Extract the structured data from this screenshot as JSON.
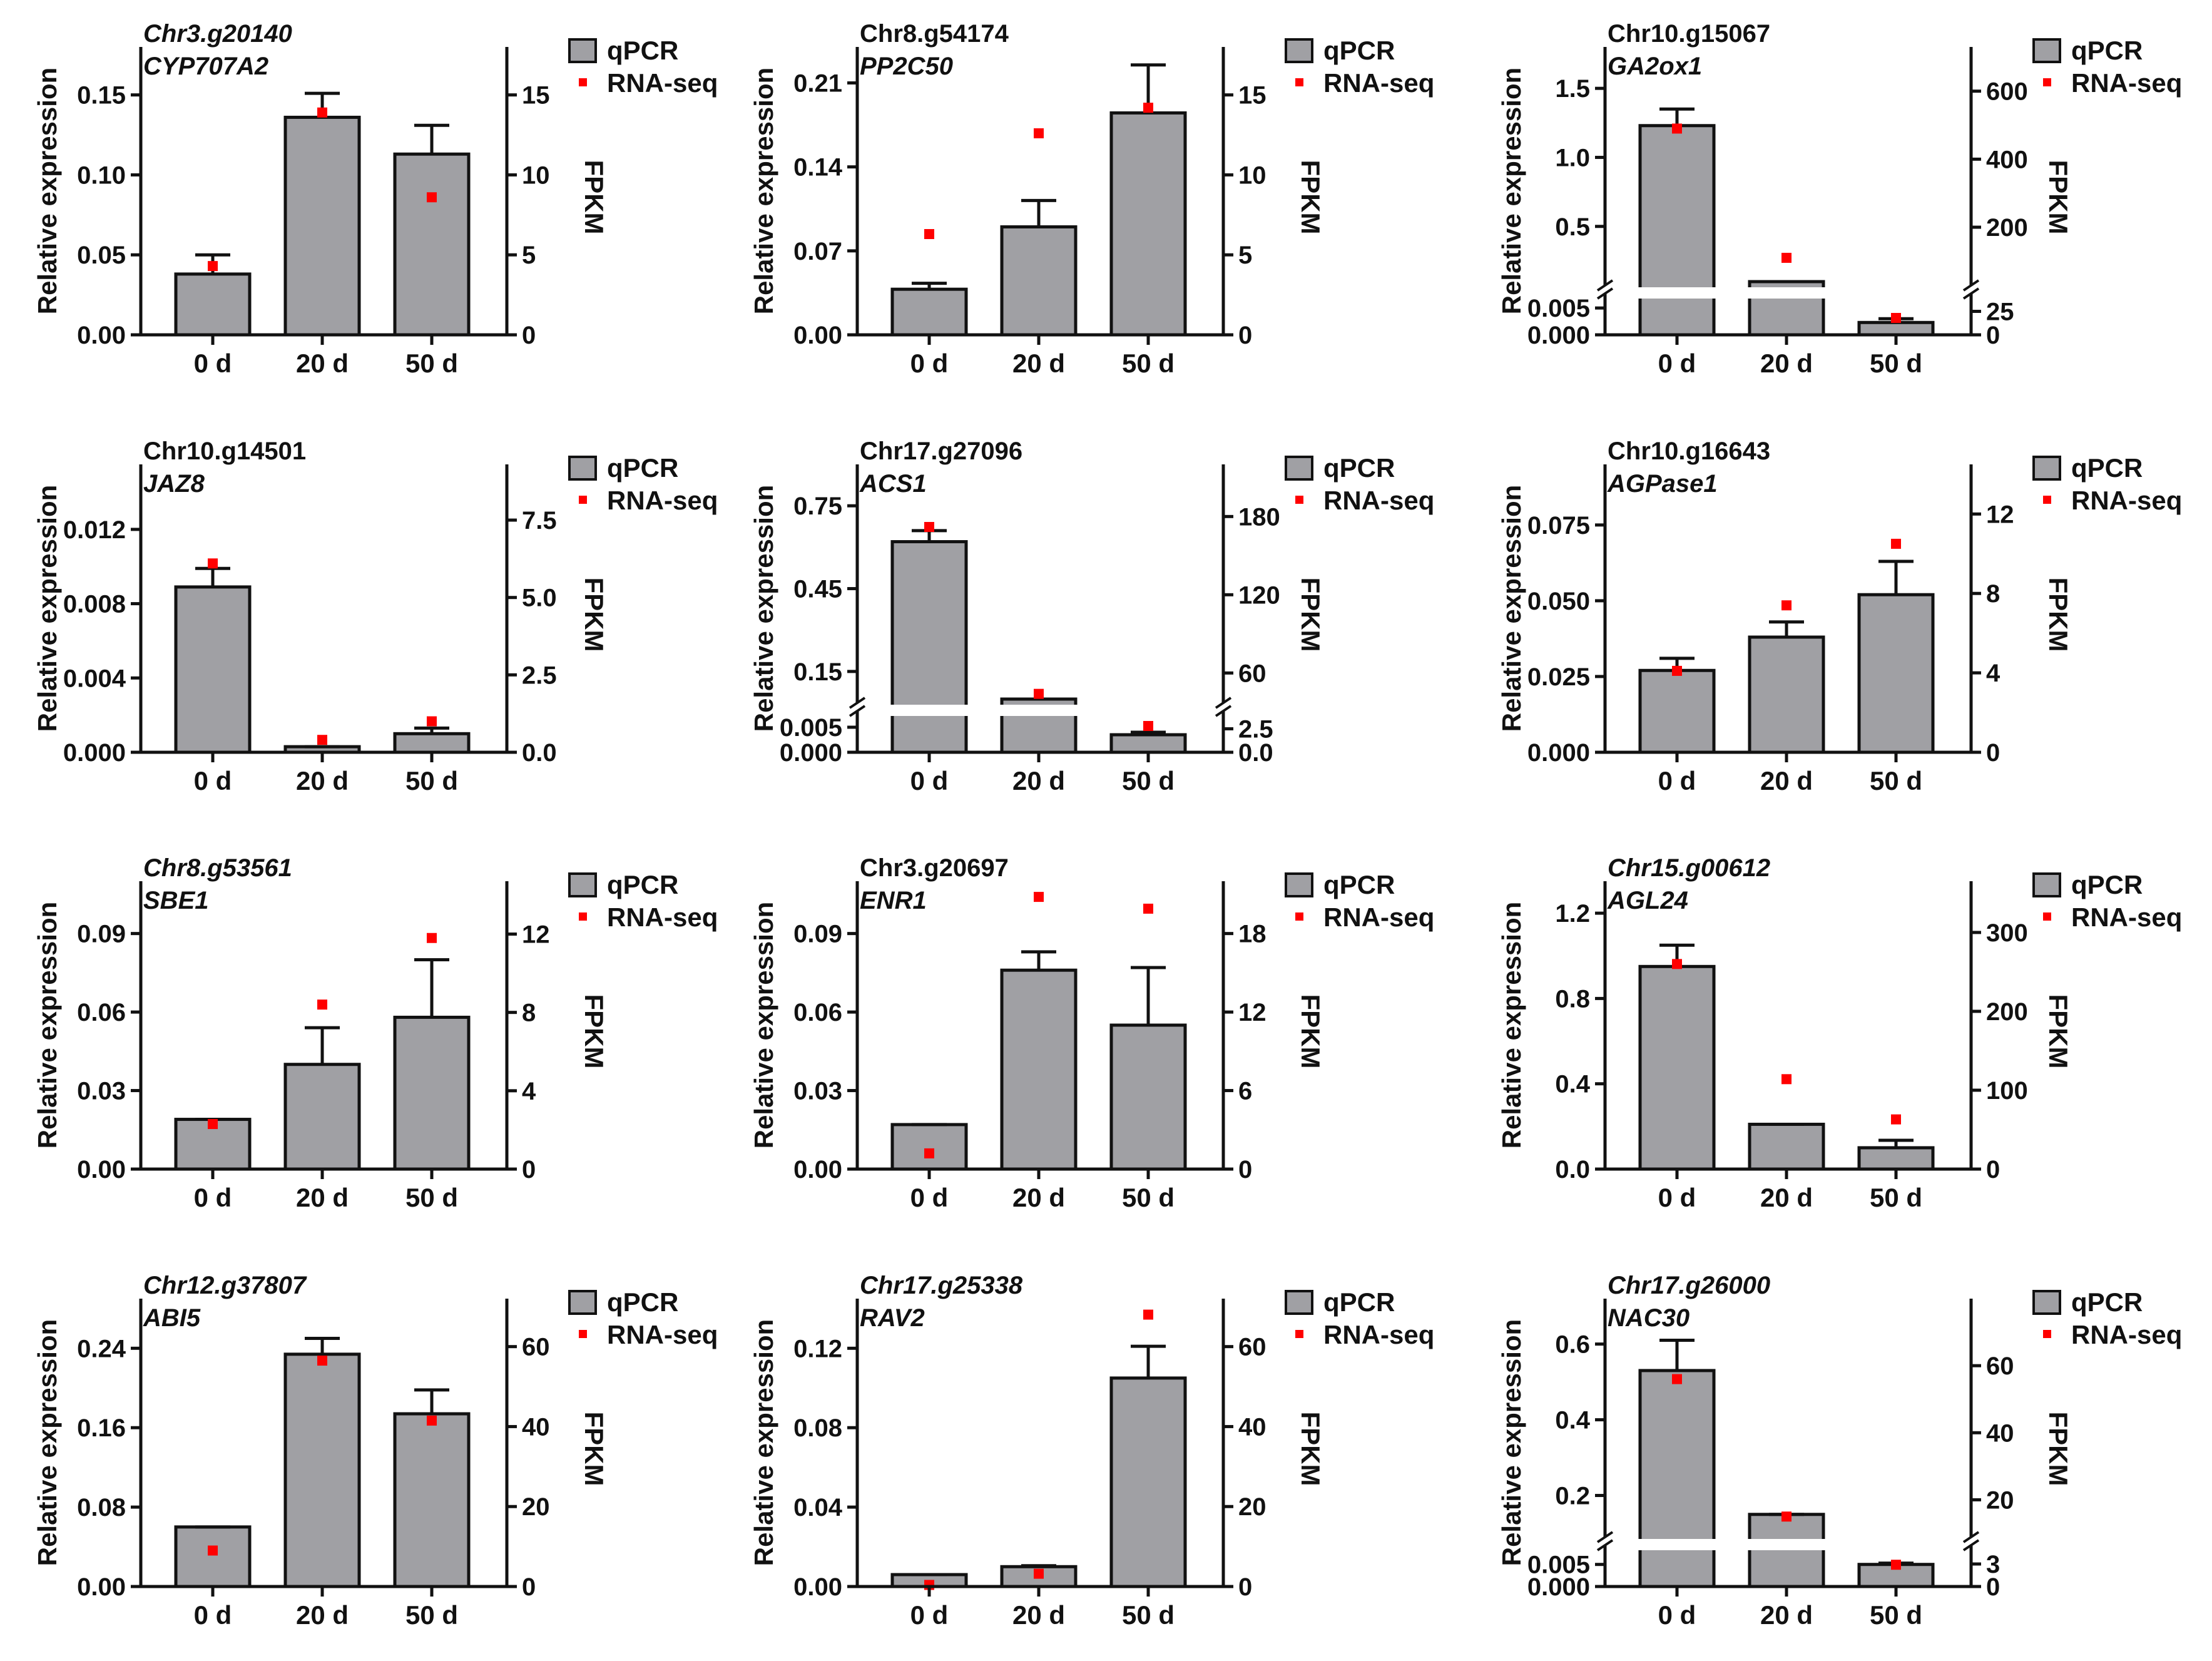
{
  "colors": {
    "bar": "#a0a0a4",
    "bar_stroke": "#111111",
    "point": "#ff0000",
    "axis": "#111111"
  },
  "legend": {
    "bar_label": "qPCR",
    "point_label": "RNA-seq"
  },
  "common": {
    "ylabel": "Relative expression",
    "y2label": "FPKM",
    "xlabel": "",
    "categories": [
      "0 d",
      "20 d",
      "50 d"
    ]
  },
  "chart_data": [
    {
      "type": "bar",
      "id_label": "Chr3.g20140",
      "gene": "CYP707A2",
      "id_italic": true,
      "categories": [
        "0 d",
        "20 d",
        "50 d"
      ],
      "series": [
        {
          "name": "qPCR",
          "values": [
            0.038,
            0.136,
            0.113
          ],
          "errors": [
            0.012,
            0.015,
            0.018
          ]
        },
        {
          "name": "RNA-seq",
          "values": [
            4.3,
            13.9,
            8.6
          ]
        }
      ],
      "ylim": [
        0,
        0.18
      ],
      "yticks": [
        "0.00",
        "0.05",
        "0.10",
        "0.15"
      ],
      "y2lim": [
        0,
        18
      ],
      "y2ticks": [
        "0",
        "5",
        "10",
        "15"
      ],
      "broken": false
    },
    {
      "type": "bar",
      "id_label": "Chr8.g54174",
      "gene": "PP2C50",
      "id_italic": false,
      "categories": [
        "0 d",
        "20 d",
        "50 d"
      ],
      "series": [
        {
          "name": "qPCR",
          "values": [
            0.038,
            0.09,
            0.185
          ],
          "errors": [
            0.005,
            0.022,
            0.04
          ]
        },
        {
          "name": "RNA-seq",
          "values": [
            6.3,
            12.6,
            14.2
          ]
        }
      ],
      "ylim": [
        0,
        0.24
      ],
      "yticks": [
        "0.00",
        "0.07",
        "0.14",
        "0.21"
      ],
      "y2lim": [
        0,
        18
      ],
      "y2ticks": [
        "0",
        "5",
        "10",
        "15"
      ],
      "broken": false
    },
    {
      "type": "bar",
      "id_label": "Chr10.g15067",
      "gene": "GA2ox1",
      "id_italic": false,
      "categories": [
        "0 d",
        "20 d",
        "50 d"
      ],
      "series": [
        {
          "name": "qPCR",
          "values": [
            1.23,
            0.1,
            0.0023
          ],
          "errors": [
            0.12,
            0.0,
            0.0007
          ]
        },
        {
          "name": "RNA-seq",
          "values": [
            490,
            110,
            18
          ]
        }
      ],
      "broken": true,
      "ylim_low": [
        0,
        0.007
      ],
      "yticks_low": [
        "0.000",
        "0.005"
      ],
      "ylim_high": [
        0.1,
        1.8
      ],
      "yticks_high": [
        "0.5",
        "1.0",
        "1.5"
      ],
      "y2lim_low": [
        0,
        40
      ],
      "y2ticks_low": [
        "0",
        "25"
      ],
      "y2lim_high": [
        40,
        730
      ],
      "y2ticks_high": [
        "200",
        "400",
        "600"
      ]
    },
    {
      "type": "bar",
      "id_label": "Chr10.g14501",
      "gene": "JAZ8",
      "id_italic": false,
      "categories": [
        "0 d",
        "20 d",
        "50 d"
      ],
      "series": [
        {
          "name": "qPCR",
          "values": [
            0.0089,
            0.0003,
            0.001
          ],
          "errors": [
            0.001,
            0.0,
            0.0003
          ]
        },
        {
          "name": "RNA-seq",
          "values": [
            6.1,
            0.4,
            1.0
          ]
        }
      ],
      "ylim": [
        0,
        0.0155
      ],
      "yticks": [
        "0.000",
        "0.004",
        "0.008",
        "0.012"
      ],
      "y2lim": [
        0,
        9.3
      ],
      "y2ticks": [
        "0.0",
        "2.5",
        "5.0",
        "7.5"
      ],
      "broken": false
    },
    {
      "type": "bar",
      "id_label": "Chr17.g27096",
      "gene": "ACS1",
      "id_italic": false,
      "categories": [
        "0 d",
        "20 d",
        "50 d"
      ],
      "series": [
        {
          "name": "qPCR",
          "values": [
            0.62,
            0.05,
            0.0035
          ],
          "errors": [
            0.04,
            0.0,
            0.0005
          ]
        },
        {
          "name": "RNA-seq",
          "values": [
            172,
            44,
            2.8
          ]
        }
      ],
      "broken": true,
      "ylim_low": [
        0,
        0.0075
      ],
      "yticks_low": [
        "0.000",
        "0.005"
      ],
      "ylim_high": [
        0.05,
        0.9
      ],
      "yticks_high": [
        "0.15",
        "0.45",
        "0.75"
      ],
      "y2lim_low": [
        0,
        4
      ],
      "y2ticks_low": [
        "0.0",
        "2.5"
      ],
      "y2lim_high": [
        40,
        220
      ],
      "y2ticks_high": [
        "60",
        "120",
        "180"
      ]
    },
    {
      "type": "bar",
      "id_label": "Chr10.g16643",
      "gene": "AGPase1",
      "id_italic": false,
      "categories": [
        "0 d",
        "20 d",
        "50 d"
      ],
      "series": [
        {
          "name": "qPCR",
          "values": [
            0.027,
            0.038,
            0.052
          ],
          "errors": [
            0.004,
            0.005,
            0.011
          ]
        },
        {
          "name": "RNA-seq",
          "values": [
            4.1,
            7.4,
            10.5
          ]
        }
      ],
      "ylim": [
        0,
        0.095
      ],
      "yticks": [
        "0.000",
        "0.025",
        "0.050",
        "0.075"
      ],
      "y2lim": [
        0,
        14.5
      ],
      "y2ticks": [
        "0",
        "4",
        "8",
        "12"
      ],
      "broken": false
    },
    {
      "type": "bar",
      "id_label": "Chr8.g53561",
      "gene": "SBE1",
      "id_italic": true,
      "categories": [
        "0 d",
        "20 d",
        "50 d"
      ],
      "series": [
        {
          "name": "qPCR",
          "values": [
            0.019,
            0.04,
            0.058
          ],
          "errors": [
            0.0,
            0.014,
            0.022
          ]
        },
        {
          "name": "RNA-seq",
          "values": [
            2.3,
            8.4,
            11.8
          ]
        }
      ],
      "ylim": [
        0,
        0.11
      ],
      "yticks": [
        "0.00",
        "0.03",
        "0.06",
        "0.09"
      ],
      "y2lim": [
        0,
        14.7
      ],
      "y2ticks": [
        "0",
        "4",
        "8",
        "12"
      ],
      "broken": false
    },
    {
      "type": "bar",
      "id_label": "Chr3.g20697",
      "gene": "ENR1",
      "id_italic": false,
      "categories": [
        "0 d",
        "20 d",
        "50 d"
      ],
      "series": [
        {
          "name": "qPCR",
          "values": [
            0.017,
            0.076,
            0.055
          ],
          "errors": [
            0.0,
            0.007,
            0.022
          ]
        },
        {
          "name": "RNA-seq",
          "values": [
            1.2,
            20.8,
            19.9
          ]
        }
      ],
      "ylim": [
        0,
        0.11
      ],
      "yticks": [
        "0.00",
        "0.03",
        "0.06",
        "0.09"
      ],
      "y2lim": [
        0,
        22
      ],
      "y2ticks": [
        "0",
        "6",
        "12",
        "18"
      ],
      "broken": false
    },
    {
      "type": "bar",
      "id_label": "Chr15.g00612",
      "gene": "AGL24",
      "id_italic": true,
      "categories": [
        "0 d",
        "20 d",
        "50 d"
      ],
      "series": [
        {
          "name": "qPCR",
          "values": [
            0.95,
            0.21,
            0.1
          ],
          "errors": [
            0.1,
            0.0,
            0.035
          ]
        },
        {
          "name": "RNA-seq",
          "values": [
            260,
            114,
            63
          ]
        }
      ],
      "ylim": [
        0,
        1.35
      ],
      "yticks": [
        "0.0",
        "0.4",
        "0.8",
        "1.2"
      ],
      "y2lim": [
        0,
        365
      ],
      "y2ticks": [
        "0",
        "100",
        "200",
        "300"
      ],
      "broken": false
    },
    {
      "type": "bar",
      "id_label": "Chr12.g37807",
      "gene": "ABI5",
      "id_italic": true,
      "categories": [
        "0 d",
        "20 d",
        "50 d"
      ],
      "series": [
        {
          "name": "qPCR",
          "values": [
            0.06,
            0.234,
            0.174
          ],
          "errors": [
            0.0,
            0.016,
            0.024
          ]
        },
        {
          "name": "RNA-seq",
          "values": [
            9.0,
            56.5,
            41.5
          ]
        }
      ],
      "ylim": [
        0,
        0.29
      ],
      "yticks": [
        "0.00",
        "0.08",
        "0.16",
        "0.24"
      ],
      "y2lim": [
        0,
        72
      ],
      "y2ticks": [
        "0",
        "20",
        "40",
        "60"
      ],
      "broken": false
    },
    {
      "type": "bar",
      "id_label": "Chr17.g25338",
      "gene": "RAV2",
      "id_italic": true,
      "categories": [
        "0 d",
        "20 d",
        "50 d"
      ],
      "series": [
        {
          "name": "qPCR",
          "values": [
            0.006,
            0.01,
            0.105
          ],
          "errors": [
            0.0,
            0.0005,
            0.016
          ]
        },
        {
          "name": "RNA-seq",
          "values": [
            0.4,
            3.2,
            68
          ]
        }
      ],
      "ylim": [
        0,
        0.145
      ],
      "yticks": [
        "0.00",
        "0.04",
        "0.08",
        "0.12"
      ],
      "y2lim": [
        0,
        72
      ],
      "y2ticks": [
        "0",
        "20",
        "40",
        "60"
      ],
      "broken": false
    },
    {
      "type": "bar",
      "id_label": "Chr17.g26000",
      "gene": "NAC30",
      "id_italic": true,
      "categories": [
        "0 d",
        "20 d",
        "50 d"
      ],
      "series": [
        {
          "name": "qPCR",
          "values": [
            0.53,
            0.15,
            0.005
          ],
          "errors": [
            0.08,
            0.0,
            0.0003
          ]
        },
        {
          "name": "RNA-seq",
          "values": [
            56,
            15,
            2.9
          ]
        }
      ],
      "broken": true,
      "ylim_low": [
        0,
        0.0085
      ],
      "yticks_low": [
        "0.000",
        "0.005"
      ],
      "ylim_high": [
        0.1,
        0.72
      ],
      "yticks_high": [
        "0.2",
        "0.4",
        "0.6"
      ],
      "y2lim_low": [
        0,
        5
      ],
      "y2ticks_low": [
        "0",
        "3"
      ],
      "y2lim_high": [
        10,
        80
      ],
      "y2ticks_high": [
        "20",
        "40",
        "60"
      ]
    }
  ]
}
